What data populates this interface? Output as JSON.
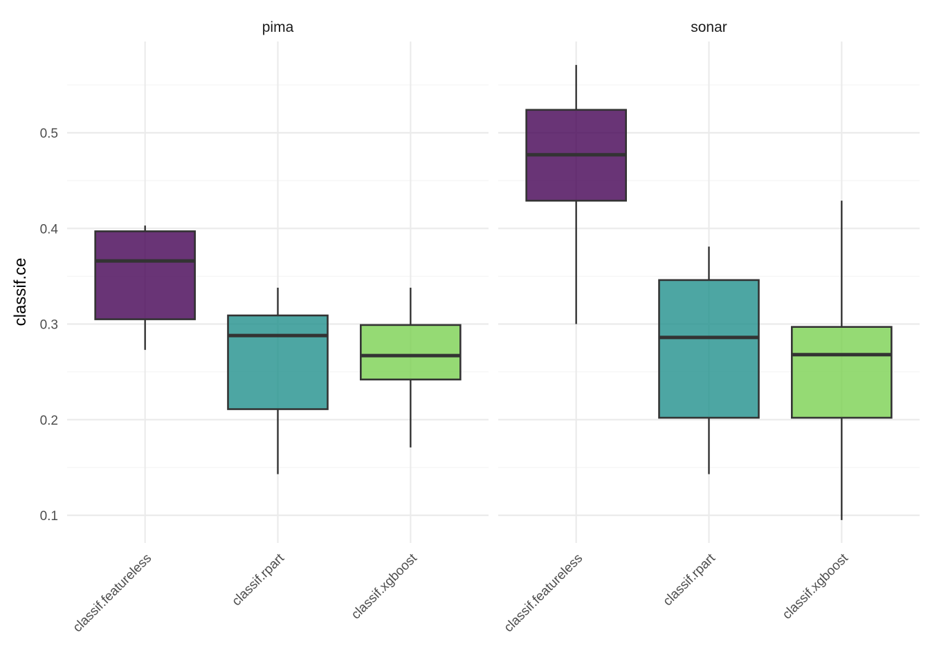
{
  "chart_data": {
    "type": "boxplot",
    "ylabel": "classif.ce",
    "xlabel": "",
    "ylim": [
      0.075,
      0.6
    ],
    "yticks": [
      0.1,
      0.2,
      0.3,
      0.4,
      0.5
    ],
    "ytick_labels": [
      "0.1",
      "0.2",
      "0.3",
      "0.4",
      "0.5"
    ],
    "grid": true,
    "legend": "none",
    "categories": [
      "classif.featureless",
      "classif.rpart",
      "classif.xgboost"
    ],
    "colors": {
      "classif.featureless": "#440154",
      "classif.rpart": "#21908C",
      "classif.xgboost": "#7AD151"
    },
    "facets": [
      {
        "name": "pima",
        "boxes": [
          {
            "learner": "classif.featureless",
            "min": 0.273,
            "q1": 0.305,
            "median": 0.366,
            "q3": 0.397,
            "max": 0.403
          },
          {
            "learner": "classif.rpart",
            "min": 0.143,
            "q1": 0.211,
            "median": 0.288,
            "q3": 0.309,
            "max": 0.338
          },
          {
            "learner": "classif.xgboost",
            "min": 0.171,
            "q1": 0.242,
            "median": 0.267,
            "q3": 0.299,
            "max": 0.338
          }
        ]
      },
      {
        "name": "sonar",
        "boxes": [
          {
            "learner": "classif.featureless",
            "min": 0.3,
            "q1": 0.429,
            "median": 0.477,
            "q3": 0.524,
            "max": 0.571
          },
          {
            "learner": "classif.rpart",
            "min": 0.143,
            "q1": 0.202,
            "median": 0.286,
            "q3": 0.346,
            "max": 0.381
          },
          {
            "learner": "classif.xgboost",
            "min": 0.095,
            "q1": 0.202,
            "median": 0.268,
            "q3": 0.297,
            "max": 0.429
          }
        ]
      }
    ]
  }
}
